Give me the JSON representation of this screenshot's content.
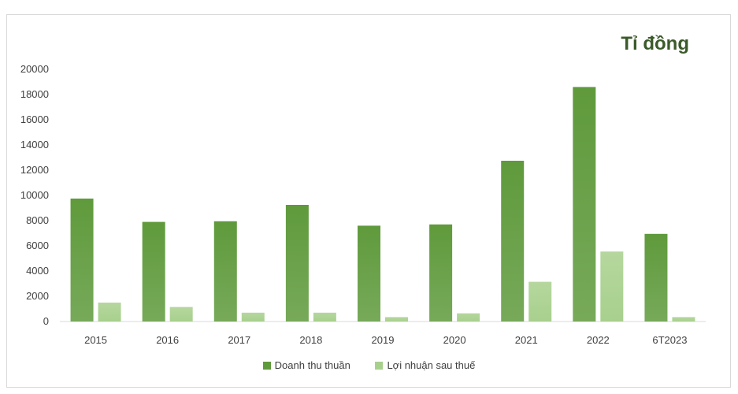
{
  "chart_data": {
    "type": "bar",
    "unit_label": "Tỉ đồng",
    "categories": [
      "2015",
      "2016",
      "2017",
      "2018",
      "2019",
      "2020",
      "2021",
      "2022",
      "6T2023"
    ],
    "series": [
      {
        "name": "Doanh thu thuần",
        "color": "#5f9a3c",
        "values": [
          9750,
          7900,
          7950,
          9250,
          7600,
          7700,
          12750,
          18600,
          6950
        ]
      },
      {
        "name": "Lợi nhuận sau thuế",
        "color": "#a8d08d",
        "values": [
          1500,
          1150,
          700,
          700,
          350,
          650,
          3150,
          5550,
          350
        ]
      }
    ],
    "yticks": [
      "0",
      "2000",
      "4000",
      "6000",
      "8000",
      "10000",
      "12000",
      "14000",
      "16000",
      "18000",
      "20000"
    ],
    "ylim": [
      0,
      20000
    ],
    "grid": false,
    "legend_position": "bottom"
  }
}
